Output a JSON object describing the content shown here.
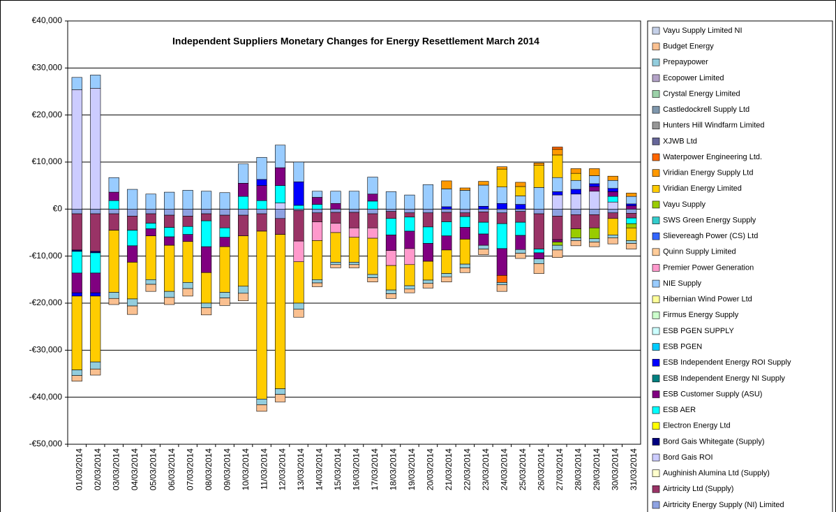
{
  "chart_data": {
    "type": "stacked_bar",
    "title": "Independent Suppliers Monetary Changes for Energy Resettlement March 2014",
    "categories": [
      "01/03/2014",
      "02/03/2014",
      "03/03/2014",
      "04/03/2014",
      "05/03/2014",
      "06/03/2014",
      "07/03/2014",
      "08/03/2014",
      "09/03/2014",
      "10/03/2014",
      "11/03/2014",
      "12/03/2014",
      "13/03/2014",
      "14/03/2014",
      "15/03/2014",
      "16/03/2014",
      "17/03/2014",
      "18/03/2014",
      "19/03/2014",
      "20/03/2014",
      "21/03/2014",
      "22/03/2014",
      "23/03/2014",
      "24/03/2014",
      "25/03/2014",
      "26/03/2014",
      "27/03/2014",
      "28/03/2014",
      "29/03/2014",
      "30/03/2014",
      "31/03/2014"
    ],
    "ylim": [
      -50000,
      40000
    ],
    "yticks": [
      {
        "value": -50000,
        "label": "-€50,000"
      },
      {
        "value": -40000,
        "label": "-€40,000"
      },
      {
        "value": -30000,
        "label": "-€30,000"
      },
      {
        "value": -20000,
        "label": "-€20,000"
      },
      {
        "value": -10000,
        "label": "-€10,000"
      },
      {
        "value": 0,
        "label": "€0"
      },
      {
        "value": 10000,
        "label": "€10,000"
      },
      {
        "value": 20000,
        "label": "€20,000"
      },
      {
        "value": 30000,
        "label": "€30,000"
      },
      {
        "value": 40000,
        "label": "€40,000"
      }
    ],
    "grid": true,
    "legend": "right",
    "series": [
      {
        "name": "Airtricity Energy Supply (NI) Limited",
        "color": "#8ea2e2",
        "values": [
          -1000,
          -1000,
          -1000,
          -1500,
          -1000,
          -1300,
          -1500,
          -1000,
          -1300,
          -1300,
          -1000,
          -2000,
          -300,
          -800,
          -700,
          -700,
          -1000,
          -500,
          -800,
          -800,
          -700,
          -800,
          -600,
          -800,
          -500,
          -1000,
          -1500,
          -1200,
          -1200,
          -800,
          -900
        ]
      },
      {
        "name": "Airtricity Ltd (Supply)",
        "color": "#993366",
        "values": [
          -7700,
          -8000,
          -3500,
          -3000,
          -2000,
          -2600,
          -2200,
          -1500,
          -2700,
          -4400,
          -3700,
          -3400,
          -6500,
          -1900,
          -2300,
          -3300,
          -3000,
          -1500,
          -900,
          -3000,
          -2000,
          -800,
          -2200,
          -2300,
          -2300,
          -7500,
          -5000,
          -3000,
          -2800,
          -1200,
          -1000
        ]
      },
      {
        "name": "Aughinish Alumina Ltd (Supply)",
        "color": "#ffffcc",
        "values": [
          0,
          0,
          0,
          0,
          0,
          0,
          0,
          0,
          0,
          0,
          0,
          0,
          0,
          0,
          0,
          0,
          0,
          0,
          0,
          0,
          0,
          0,
          0,
          0,
          0,
          0,
          0,
          0,
          0,
          0,
          0
        ]
      },
      {
        "name": "Bord Gais ROI",
        "color": "#ccccff",
        "values": [
          25400,
          25700,
          0,
          0,
          0,
          0,
          0,
          0,
          0,
          0,
          0,
          1300,
          0,
          0,
          0,
          0,
          0,
          0,
          0,
          0,
          0,
          0,
          0,
          0,
          0,
          0,
          3000,
          3200,
          3800,
          1500,
          0
        ]
      },
      {
        "name": "Bord Gais Whitegate (Supply)",
        "color": "#000080",
        "values": [
          -300,
          -300,
          0,
          0,
          0,
          0,
          0,
          0,
          0,
          0,
          0,
          0,
          0,
          0,
          0,
          0,
          0,
          0,
          0,
          0,
          0,
          0,
          0,
          0,
          0,
          0,
          0,
          0,
          0,
          0,
          0
        ]
      },
      {
        "name": "Electron Energy Ltd",
        "color": "#ffff00",
        "values": [
          0,
          0,
          0,
          0,
          0,
          0,
          0,
          0,
          0,
          0,
          0,
          0,
          0,
          0,
          0,
          0,
          0,
          0,
          0,
          0,
          0,
          0,
          0,
          0,
          0,
          0,
          0,
          0,
          0,
          0,
          0
        ]
      },
      {
        "name": "ESB AER",
        "color": "#00ffff",
        "values": [
          -4600,
          -4300,
          1800,
          -3300,
          -1200,
          -2000,
          -1700,
          -5500,
          -2000,
          2700,
          1800,
          3700,
          800,
          1000,
          0,
          0,
          1700,
          -3500,
          -3000,
          -3500,
          -3000,
          -2300,
          -2500,
          -5300,
          -2800,
          -800,
          0,
          0,
          0,
          1200,
          -1200
        ]
      },
      {
        "name": "ESB Customer Supply (ASU)",
        "color": "#800080",
        "values": [
          -4200,
          -4200,
          1800,
          -3500,
          -1500,
          -1800,
          -1500,
          -5500,
          -2000,
          2800,
          3200,
          3800,
          0,
          1500,
          1200,
          0,
          1500,
          -3300,
          -3700,
          -3800,
          -3000,
          -2500,
          -2400,
          -5700,
          -3000,
          -1300,
          -500,
          0,
          1000,
          1000,
          700
        ]
      },
      {
        "name": "ESB Independent Energy NI Supply",
        "color": "#008080",
        "values": [
          0,
          0,
          0,
          0,
          0,
          0,
          0,
          0,
          0,
          0,
          0,
          0,
          0,
          0,
          0,
          0,
          0,
          0,
          0,
          0,
          0,
          0,
          0,
          0,
          0,
          0,
          0,
          0,
          0,
          0,
          0
        ]
      },
      {
        "name": "ESB Independent Energy ROI Supply",
        "color": "#0000ff",
        "values": [
          -700,
          -700,
          0,
          0,
          0,
          0,
          0,
          0,
          0,
          0,
          1300,
          0,
          5000,
          0,
          0,
          0,
          0,
          0,
          0,
          0,
          500,
          0,
          600,
          1200,
          1000,
          0,
          700,
          1000,
          600,
          700,
          400
        ]
      },
      {
        "name": "ESB PGEN",
        "color": "#00ccff",
        "values": [
          0,
          0,
          0,
          0,
          0,
          0,
          0,
          0,
          0,
          0,
          0,
          0,
          0,
          0,
          0,
          0,
          0,
          0,
          0,
          0,
          0,
          0,
          0,
          0,
          0,
          0,
          0,
          0,
          0,
          0,
          0
        ]
      },
      {
        "name": "ESB PGEN SUPPLY",
        "color": "#ccffff",
        "values": [
          0,
          0,
          0,
          0,
          0,
          0,
          0,
          0,
          0,
          0,
          0,
          0,
          0,
          0,
          0,
          0,
          0,
          0,
          0,
          0,
          0,
          0,
          0,
          0,
          0,
          0,
          0,
          0,
          0,
          0,
          0
        ]
      },
      {
        "name": "Firmus Energy Supply",
        "color": "#ccffcc",
        "values": [
          0,
          0,
          0,
          0,
          0,
          0,
          0,
          0,
          0,
          0,
          0,
          0,
          0,
          0,
          0,
          0,
          0,
          0,
          0,
          0,
          0,
          0,
          0,
          0,
          0,
          0,
          0,
          0,
          0,
          0,
          0
        ]
      },
      {
        "name": "Hibernian Wind Power Ltd",
        "color": "#ffff99",
        "values": [
          0,
          0,
          0,
          0,
          0,
          0,
          0,
          0,
          0,
          0,
          0,
          0,
          0,
          0,
          0,
          0,
          0,
          0,
          0,
          0,
          0,
          0,
          0,
          0,
          0,
          0,
          0,
          0,
          0,
          0,
          0
        ]
      },
      {
        "name": "NIE Supply",
        "color": "#99ccff",
        "values": [
          2600,
          2800,
          3100,
          4200,
          3200,
          3600,
          4000,
          3800,
          3500,
          4100,
          4700,
          4800,
          4200,
          1300,
          2600,
          3800,
          3600,
          3700,
          3000,
          5200,
          3800,
          4000,
          4500,
          3500,
          1800,
          4600,
          3000,
          1900,
          1700,
          1700,
          1600
        ]
      },
      {
        "name": "Premier Power Generation",
        "color": "#ff99cc",
        "values": [
          0,
          0,
          0,
          0,
          0,
          0,
          0,
          0,
          0,
          0,
          0,
          0,
          -4400,
          -4000,
          -2000,
          -2000,
          -2200,
          -3200,
          -3400,
          0,
          0,
          0,
          0,
          0,
          0,
          0,
          0,
          0,
          0,
          0,
          0
        ]
      },
      {
        "name": "Quinn Supply Limited",
        "color": "#ffcc99",
        "values": [
          0,
          0,
          0,
          0,
          0,
          0,
          0,
          0,
          0,
          0,
          0,
          0,
          0,
          0,
          0,
          0,
          0,
          0,
          0,
          0,
          0,
          0,
          0,
          0,
          0,
          0,
          0,
          0,
          0,
          0,
          0
        ]
      },
      {
        "name": "Slievereagh Power (CS) Ltd",
        "color": "#3366ff",
        "values": [
          0,
          0,
          0,
          0,
          0,
          0,
          0,
          0,
          0,
          0,
          0,
          0,
          0,
          0,
          0,
          0,
          0,
          0,
          0,
          0,
          0,
          0,
          0,
          0,
          0,
          0,
          0,
          0,
          0,
          0,
          0
        ]
      },
      {
        "name": "SWS Green Energy Supply",
        "color": "#33cccc",
        "values": [
          0,
          0,
          0,
          0,
          0,
          0,
          0,
          0,
          0,
          0,
          0,
          0,
          0,
          0,
          0,
          0,
          0,
          0,
          0,
          0,
          0,
          0,
          0,
          0,
          0,
          0,
          0,
          0,
          0,
          0,
          0
        ]
      },
      {
        "name": "Vayu Supply",
        "color": "#99cc00",
        "values": [
          0,
          0,
          0,
          0,
          0,
          0,
          0,
          0,
          0,
          0,
          0,
          0,
          0,
          0,
          0,
          0,
          0,
          0,
          0,
          0,
          0,
          0,
          0,
          0,
          0,
          0,
          -700,
          -1900,
          -2300,
          0,
          -900
        ]
      },
      {
        "name": "Viridian Energy Limited",
        "color": "#ffcc00",
        "values": [
          -15700,
          -14000,
          -13200,
          -7800,
          -9300,
          -9800,
          -8700,
          -6500,
          -9700,
          -10700,
          -35700,
          -32800,
          -8800,
          -8300,
          -6300,
          -5300,
          -7700,
          -5200,
          -4500,
          -4000,
          -5000,
          -5300,
          0,
          3800,
          2000,
          4700,
          4800,
          1500,
          0,
          -3500,
          -2700
        ]
      },
      {
        "name": "Viridian Energy Supply Ltd",
        "color": "#ff9900",
        "values": [
          0,
          0,
          0,
          0,
          0,
          0,
          0,
          0,
          0,
          0,
          0,
          0,
          0,
          0,
          0,
          0,
          0,
          0,
          0,
          0,
          1700,
          500,
          800,
          500,
          900,
          500,
          1200,
          1000,
          1500,
          900,
          700
        ]
      },
      {
        "name": "Waterpower Engineering Ltd.",
        "color": "#ff6600",
        "values": [
          0,
          0,
          0,
          0,
          0,
          0,
          0,
          0,
          0,
          0,
          0,
          0,
          0,
          0,
          0,
          0,
          0,
          0,
          0,
          0,
          0,
          0,
          0,
          -1500,
          0,
          0,
          500,
          0,
          0,
          0,
          0
        ]
      },
      {
        "name": "XJWB Ltd",
        "color": "#666699",
        "values": [
          0,
          0,
          0,
          0,
          0,
          0,
          0,
          0,
          0,
          0,
          0,
          0,
          0,
          0,
          0,
          0,
          0,
          0,
          0,
          0,
          0,
          0,
          0,
          0,
          0,
          0,
          0,
          0,
          0,
          0,
          0
        ]
      },
      {
        "name": "Hunters Hill Windfarm Limited",
        "color": "#969696",
        "values": [
          0,
          0,
          0,
          0,
          0,
          0,
          0,
          0,
          0,
          0,
          0,
          0,
          0,
          0,
          0,
          0,
          0,
          0,
          0,
          0,
          0,
          0,
          0,
          0,
          0,
          0,
          0,
          0,
          0,
          0,
          0
        ]
      },
      {
        "name": "Castledockrell Supply Ltd",
        "color": "#7f97ad",
        "values": [
          0,
          0,
          0,
          0,
          0,
          0,
          0,
          0,
          0,
          0,
          0,
          0,
          0,
          0,
          0,
          0,
          0,
          0,
          0,
          0,
          0,
          0,
          0,
          0,
          0,
          0,
          0,
          0,
          0,
          0,
          0
        ]
      },
      {
        "name": "Crystal Energy Limited",
        "color": "#9bd1a8",
        "values": [
          0,
          0,
          0,
          0,
          0,
          0,
          0,
          0,
          0,
          0,
          0,
          0,
          0,
          0,
          0,
          0,
          0,
          0,
          0,
          0,
          0,
          0,
          0,
          0,
          0,
          0,
          0,
          0,
          0,
          0,
          0
        ]
      },
      {
        "name": "Ecopower Limited",
        "color": "#b3a2c7",
        "values": [
          0,
          0,
          0,
          0,
          0,
          0,
          0,
          0,
          0,
          0,
          0,
          0,
          0,
          0,
          0,
          0,
          0,
          0,
          0,
          0,
          0,
          0,
          0,
          0,
          0,
          0,
          0,
          0,
          0,
          0,
          0
        ]
      },
      {
        "name": "Prepaypower",
        "color": "#93cddd",
        "values": [
          -1200,
          -1500,
          -1300,
          -1500,
          -1000,
          -1300,
          -1300,
          -1000,
          -1200,
          -1500,
          -1200,
          -1200,
          -1300,
          -700,
          -500,
          -500,
          -700,
          -800,
          -700,
          -700,
          -700,
          -800,
          -800,
          -500,
          -800,
          -1000,
          -1000,
          -600,
          -700,
          -600,
          -600
        ]
      },
      {
        "name": "Budget Energy",
        "color": "#fac090",
        "values": [
          -1200,
          -1300,
          -1300,
          -1800,
          -1500,
          -1500,
          -1600,
          -1500,
          -1600,
          -1600,
          -1400,
          -1600,
          -1700,
          -800,
          -700,
          -700,
          -900,
          -1000,
          -800,
          -1000,
          -1100,
          -1000,
          -1200,
          -1400,
          -1100,
          -2100,
          -1600,
          -1100,
          -1000,
          -1300,
          -1200
        ]
      },
      {
        "name": "Vayu Supply Limited NI",
        "color": "#c5d0e8",
        "values": [
          0,
          0,
          0,
          0,
          0,
          0,
          0,
          0,
          0,
          0,
          0,
          0,
          0,
          0,
          0,
          0,
          0,
          0,
          0,
          0,
          0,
          0,
          0,
          0,
          0,
          0,
          0,
          0,
          0,
          0,
          0
        ]
      }
    ]
  }
}
